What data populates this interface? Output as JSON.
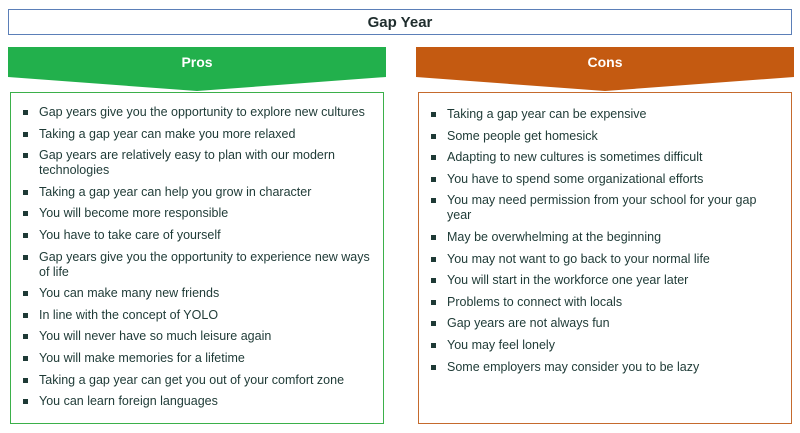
{
  "title": "Gap Year",
  "colors": {
    "pros": "#22b04c",
    "cons": "#c45a11",
    "title_border": "#5b7fb8"
  },
  "pros": {
    "heading": "Pros",
    "items": [
      "Gap years give you the opportunity to explore new cultures",
      "Taking a gap year can make you more relaxed",
      "Gap years are relatively easy to plan with our modern technologies",
      "Taking a gap year can help you grow in character",
      "You will become more responsible",
      "You have to take care of yourself",
      "Gap years give you the opportunity to experience new ways of life",
      "You can make many new friends",
      "In line with the concept of YOLO",
      "You will never have so much leisure again",
      "You will make memories for a lifetime",
      "Taking a gap year can get you out of your comfort zone",
      "You can learn foreign languages"
    ]
  },
  "cons": {
    "heading": "Cons",
    "items": [
      "Taking a gap year can be expensive",
      "Some people get homesick",
      "Adapting to new cultures is sometimes difficult",
      "You have to spend some organizational efforts",
      "You may need permission from your school for your gap year",
      "May be overwhelming at the beginning",
      "You may not want to go back to your normal life",
      "You will start in the workforce one year later",
      "Problems to connect with locals",
      "Gap years are not always fun",
      "You may feel lonely",
      "Some employers may consider you to be lazy"
    ]
  }
}
